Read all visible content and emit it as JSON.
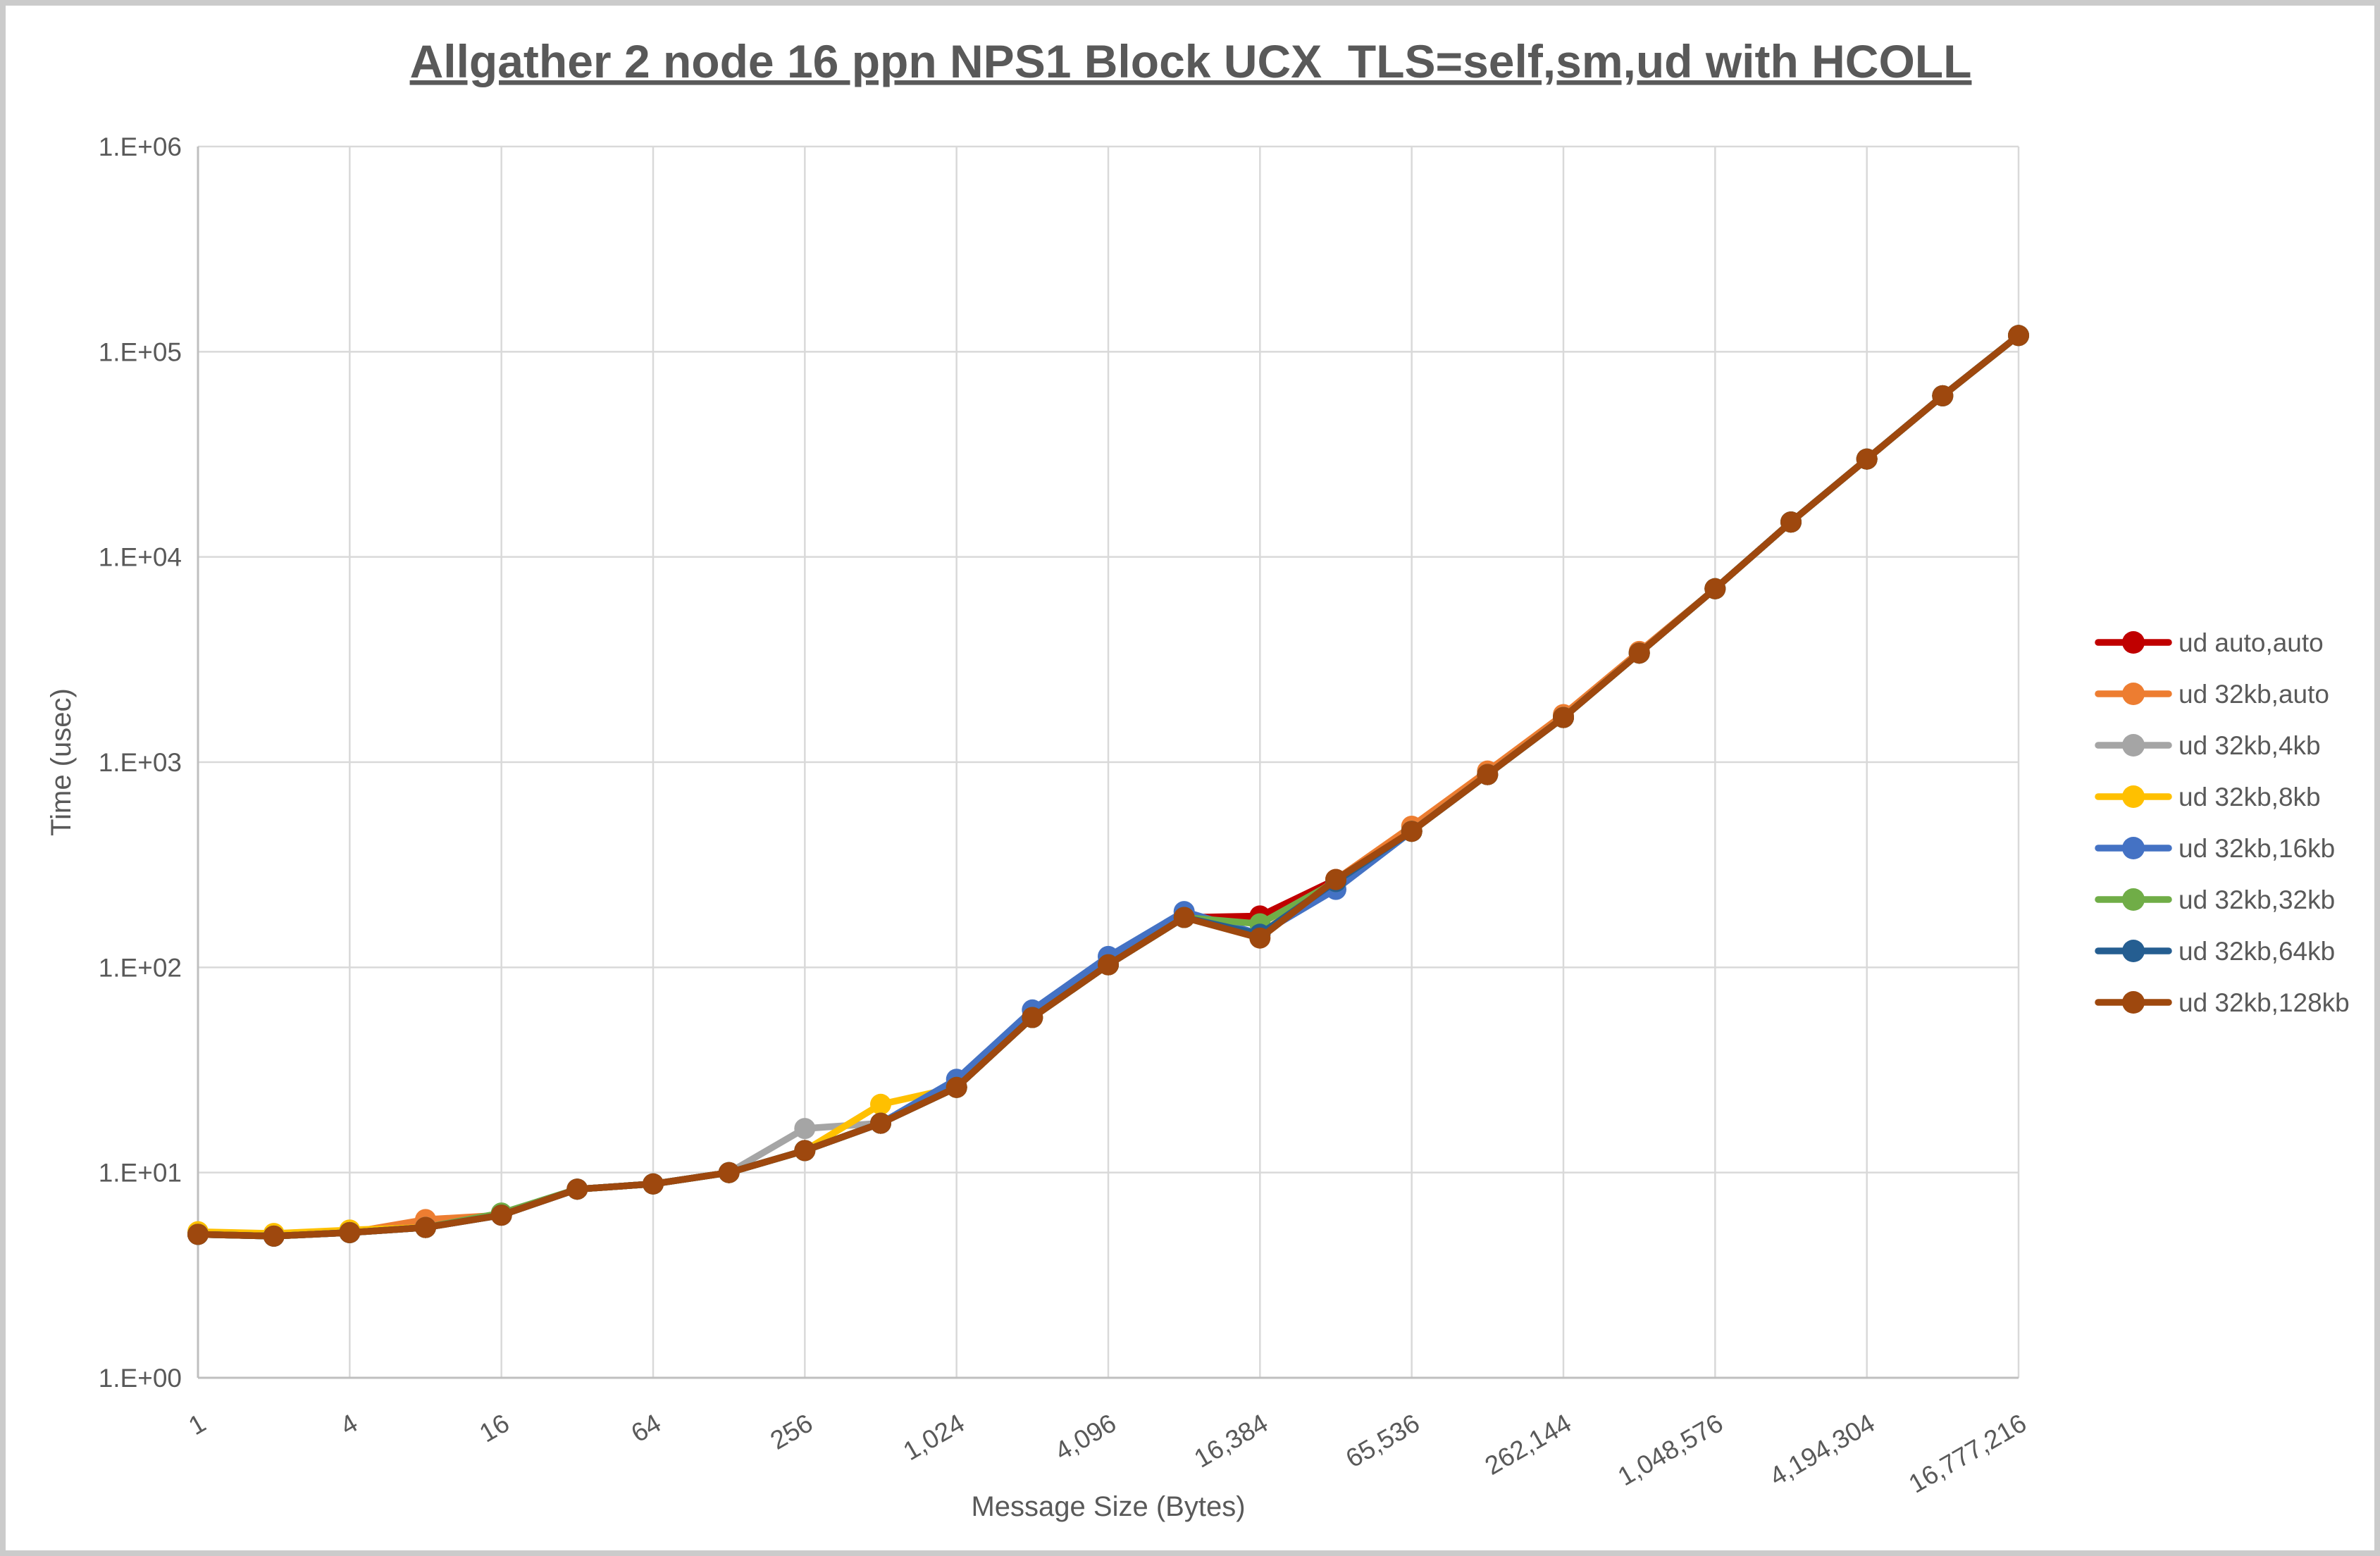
{
  "title": "Allgather 2 node 16 ppn NPS1 Block UCX_TLS=self,sm,ud with HCOLL",
  "colors": {
    "title_text": "#595959",
    "axis_text": "#595959",
    "gridline": "#D9D9D9",
    "axis_line": "#BFBFBF",
    "background": "#FFFFFF",
    "frame_border": "#CBCBCB"
  },
  "chart_data": {
    "type": "line",
    "title": "Allgather 2 node 16 ppn NPS1 Block UCX_TLS=self,sm,ud with HCOLL",
    "xlabel": "Message Size (Bytes)",
    "ylabel": "Time (usec)",
    "x_scale": "log2",
    "y_scale": "log10",
    "ylim": [
      1,
      1000000
    ],
    "xlim": [
      1,
      16777216
    ],
    "grid": true,
    "legend_position": "right",
    "y_tick_labels": [
      "1.E+00",
      "1.E+01",
      "1.E+02",
      "1.E+03",
      "1.E+04",
      "1.E+05",
      "1.E+06"
    ],
    "x_ticks": [
      1,
      4,
      16,
      64,
      256,
      1024,
      4096,
      16384,
      65536,
      262144,
      1048576,
      4194304,
      16777216
    ],
    "x_tick_labels": [
      "1",
      "4",
      "16",
      "64",
      "256",
      "1,024",
      "4,096",
      "16,384",
      "65,536",
      "262,144",
      "1,048,576",
      "4,194,304",
      "16,777,216"
    ],
    "x": [
      1,
      2,
      4,
      8,
      16,
      32,
      64,
      128,
      256,
      512,
      1024,
      2048,
      4096,
      8192,
      16384,
      32768,
      65536,
      131072,
      262144,
      524288,
      1048576,
      2097152,
      4194304,
      8388608,
      16777216
    ],
    "series": [
      {
        "name": "ud auto,auto",
        "color": "#C00000",
        "values": [
          5.0,
          4.9,
          5.1,
          5.4,
          6.2,
          8.3,
          8.8,
          10.0,
          12.8,
          17.4,
          26.0,
          57,
          103,
          175,
          178,
          268,
          460,
          870,
          1650,
          3400,
          7000,
          14800,
          30000,
          61000,
          120000
        ]
      },
      {
        "name": "ud 32kb,auto",
        "color": "#ED7D31",
        "values": [
          5.0,
          5.0,
          5.1,
          5.9,
          6.2,
          8.3,
          8.8,
          10.0,
          12.8,
          17.4,
          26.0,
          57,
          103,
          175,
          145,
          268,
          487,
          905,
          1705,
          3460,
          7000,
          14800,
          30000,
          61000,
          120000
        ]
      },
      {
        "name": "ud 32kb,4kb",
        "color": "#A5A5A5",
        "values": [
          5.0,
          4.9,
          5.1,
          5.4,
          6.2,
          8.3,
          8.8,
          10.0,
          16.4,
          17.4,
          26.0,
          57,
          103,
          175,
          145,
          262,
          460,
          870,
          1650,
          3400,
          7000,
          14800,
          30000,
          61000,
          120000
        ]
      },
      {
        "name": "ud 32kb,8kb",
        "color": "#FFC000",
        "values": [
          5.15,
          5.05,
          5.25,
          5.4,
          6.2,
          8.3,
          8.8,
          10.0,
          12.8,
          21.5,
          26.0,
          57,
          103,
          175,
          145,
          262,
          460,
          870,
          1650,
          3400,
          7000,
          14800,
          30000,
          61000,
          120000
        ]
      },
      {
        "name": "ud 32kb,16kb",
        "color": "#4472C4",
        "values": [
          5.0,
          4.9,
          5.1,
          5.4,
          6.2,
          8.3,
          8.8,
          10.0,
          12.8,
          17.4,
          28.5,
          62,
          113,
          187,
          145,
          240,
          460,
          870,
          1650,
          3400,
          7000,
          14800,
          30000,
          61000,
          120000
        ]
      },
      {
        "name": "ud 32kb,32kb",
        "color": "#70AD47",
        "values": [
          5.0,
          4.9,
          5.1,
          5.4,
          6.35,
          8.3,
          8.8,
          10.0,
          12.8,
          17.4,
          26.0,
          57,
          103,
          175,
          163,
          262,
          460,
          870,
          1650,
          3400,
          7000,
          14800,
          30000,
          61000,
          120000
        ]
      },
      {
        "name": "ud 32kb,64kb",
        "color": "#255E91",
        "values": [
          5.0,
          4.9,
          5.1,
          5.4,
          6.2,
          8.3,
          8.8,
          10.0,
          12.8,
          17.4,
          26.0,
          57,
          103,
          175,
          145,
          262,
          460,
          870,
          1650,
          3400,
          7000,
          14800,
          30000,
          61000,
          120000
        ]
      },
      {
        "name": "ud 32kb,128kb",
        "color": "#9E480E",
        "values": [
          5.0,
          4.9,
          5.1,
          5.4,
          6.2,
          8.3,
          8.8,
          10.0,
          12.8,
          17.4,
          26.0,
          57,
          103,
          175,
          139,
          268,
          460,
          870,
          1650,
          3400,
          7000,
          14800,
          30000,
          61000,
          120000
        ]
      }
    ]
  }
}
